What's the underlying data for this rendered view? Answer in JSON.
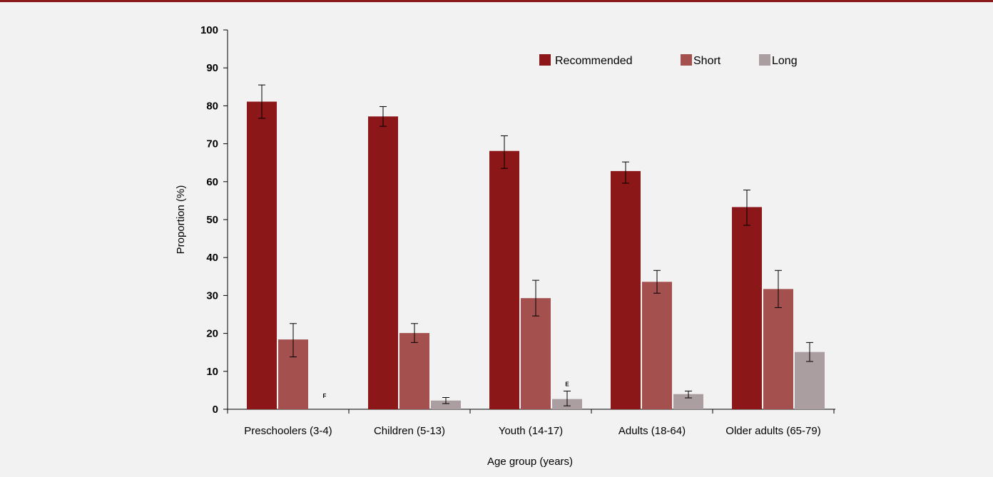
{
  "chart_data": {
    "type": "bar",
    "xlabel": "Age group (years)",
    "ylabel": "Proportion (%)",
    "ylim": [
      0,
      100
    ],
    "yticks": [
      0,
      10,
      20,
      30,
      40,
      50,
      60,
      70,
      80,
      90,
      100
    ],
    "categories": [
      "Preschoolers (3-4)",
      "Children (5-13)",
      "Youth (14-17)",
      "Adults (18-64)",
      "Older adults (65-79)"
    ],
    "series": [
      {
        "name": "Recommended",
        "color": "#8b1719",
        "values": [
          81.1,
          77.2,
          68.1,
          62.8,
          53.3
        ],
        "err_low": [
          76.7,
          74.6,
          63.5,
          59.6,
          48.5
        ],
        "err_high": [
          85.5,
          79.8,
          72.1,
          65.2,
          57.8
        ]
      },
      {
        "name": "Short",
        "color": "#a4504f",
        "values": [
          18.4,
          20.1,
          29.3,
          33.6,
          31.7
        ],
        "err_low": [
          13.8,
          17.6,
          24.6,
          30.6,
          26.8
        ],
        "err_high": [
          22.6,
          22.6,
          34.0,
          36.6,
          36.6
        ]
      },
      {
        "name": "Long",
        "color": "#ab9ea1",
        "values": [
          null,
          2.3,
          2.7,
          4.0,
          15.1
        ],
        "err_low": [
          null,
          1.5,
          0.9,
          3.0,
          12.6
        ],
        "err_high": [
          null,
          3.1,
          4.8,
          4.8,
          17.6
        ],
        "notes": [
          "F",
          "",
          "E",
          "",
          ""
        ]
      }
    ],
    "legend_position": "top-right",
    "grid": false
  }
}
